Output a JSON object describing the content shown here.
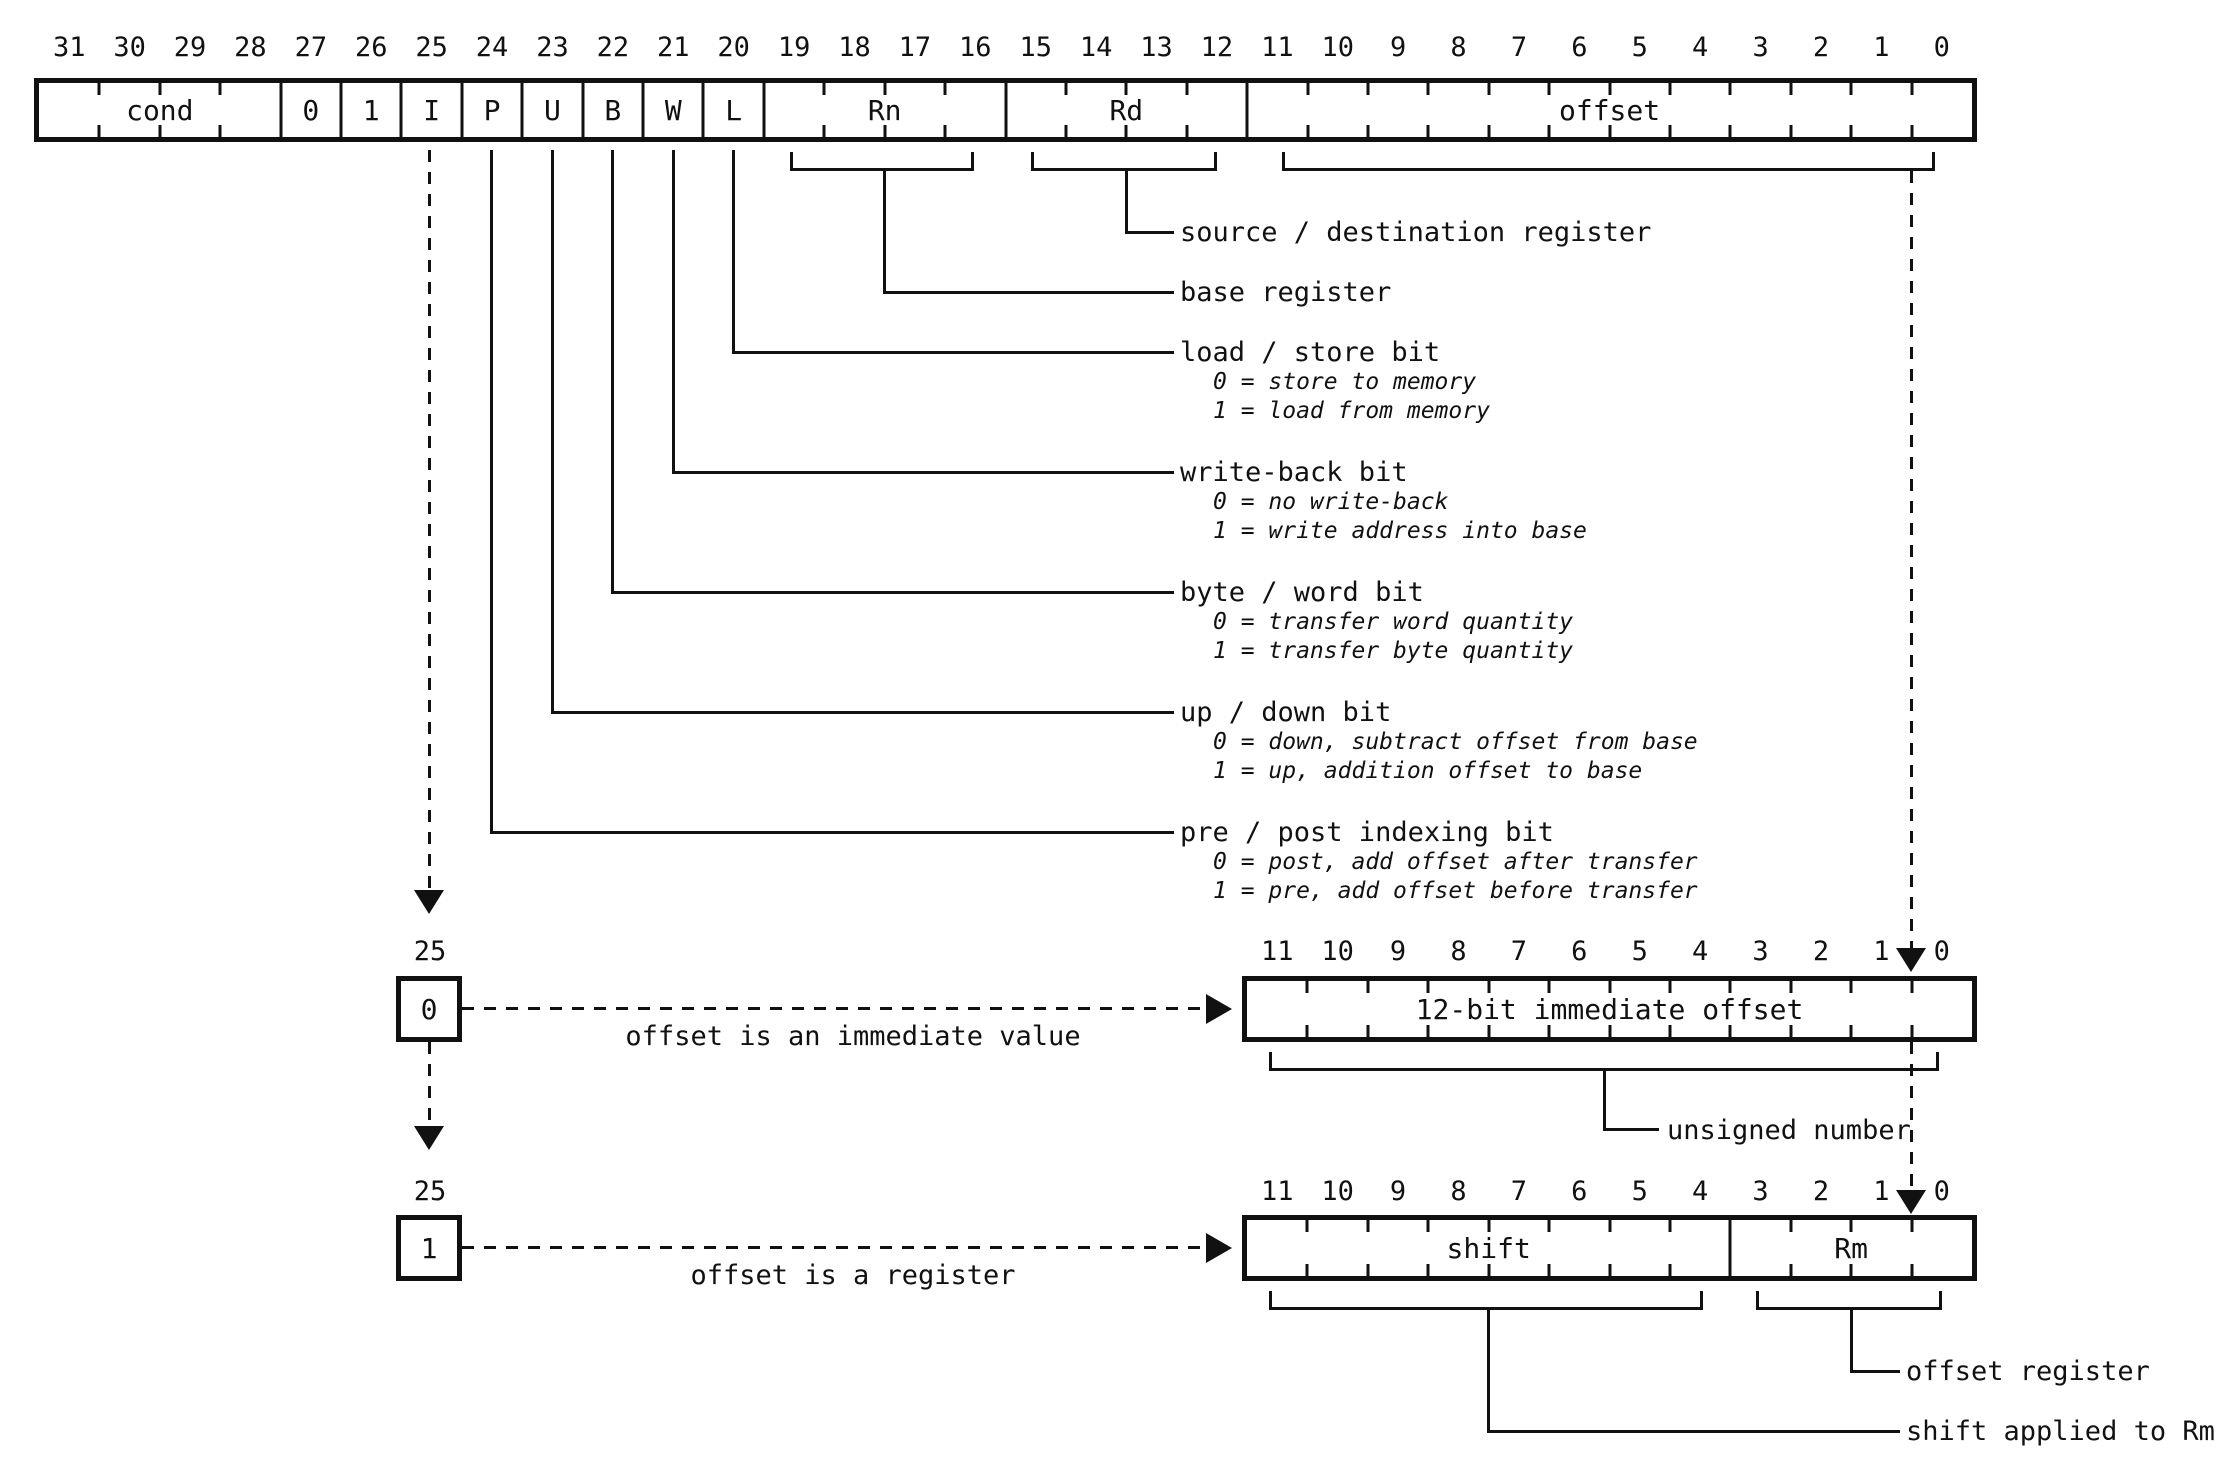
{
  "colors": {
    "ink": "#111111",
    "background": "#ffffff"
  },
  "diagram": {
    "main_row": {
      "bit_labels": [
        31,
        30,
        29,
        28,
        27,
        26,
        25,
        24,
        23,
        22,
        21,
        20,
        19,
        18,
        17,
        16,
        15,
        14,
        13,
        12,
        11,
        10,
        9,
        8,
        7,
        6,
        5,
        4,
        3,
        2,
        1,
        0
      ],
      "fields": [
        {
          "label": "cond",
          "bits": 4
        },
        {
          "label": "0",
          "bits": 1
        },
        {
          "label": "1",
          "bits": 1
        },
        {
          "label": "I",
          "bits": 1
        },
        {
          "label": "P",
          "bits": 1
        },
        {
          "label": "U",
          "bits": 1
        },
        {
          "label": "B",
          "bits": 1
        },
        {
          "label": "W",
          "bits": 1
        },
        {
          "label": "L",
          "bits": 1
        },
        {
          "label": "Rn",
          "bits": 4
        },
        {
          "label": "Rd",
          "bits": 4
        },
        {
          "label": "offset",
          "bits": 12
        }
      ]
    },
    "annotations": [
      {
        "title": "source / destination register",
        "subs": []
      },
      {
        "title": "base register",
        "subs": []
      },
      {
        "title": "load / store bit",
        "subs": [
          "0 = store to memory",
          "1 = load from memory"
        ]
      },
      {
        "title": "write-back bit",
        "subs": [
          "0 = no write-back",
          "1 = write address into base"
        ]
      },
      {
        "title": "byte / word bit",
        "subs": [
          "0 = transfer word quantity",
          "1 = transfer byte quantity"
        ]
      },
      {
        "title": "up / down bit",
        "subs": [
          "0 = down, subtract offset from base",
          "1 = up, addition offset to base"
        ]
      },
      {
        "title": "pre / post indexing bit",
        "subs": [
          "0 = post, add offset after transfer",
          "1 = pre, add offset before transfer"
        ]
      }
    ],
    "immediate_branch": {
      "bit_number_label": "25",
      "box_value": "0",
      "arrow_label": "offset is an immediate value",
      "bit_labels": [
        11,
        10,
        9,
        8,
        7,
        6,
        5,
        4,
        3,
        2,
        1,
        0
      ],
      "fields": [
        {
          "label": "12-bit immediate offset",
          "bits": 12
        }
      ],
      "bracket_label": "unsigned number"
    },
    "register_branch": {
      "bit_number_label": "25",
      "box_value": "1",
      "arrow_label": "offset is a register",
      "bit_labels": [
        11,
        10,
        9,
        8,
        7,
        6,
        5,
        4,
        3,
        2,
        1,
        0
      ],
      "fields": [
        {
          "label": "shift",
          "bits": 8
        },
        {
          "label": "Rm",
          "bits": 4
        }
      ],
      "rm_bracket_label": "offset register",
      "shift_bracket_label": "shift applied to Rm"
    }
  }
}
